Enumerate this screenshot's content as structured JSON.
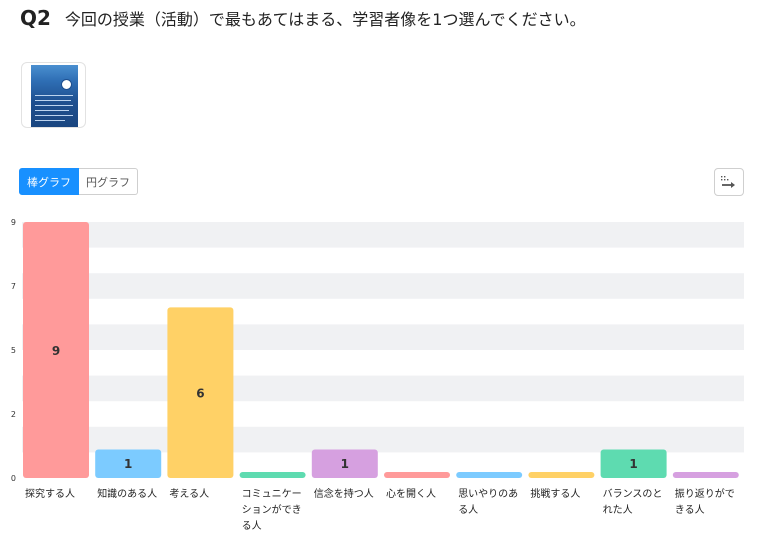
{
  "question": {
    "number": "Q2",
    "text": "今回の授業（活動）で最もあてはまる、学習者像を1つ選んでください。"
  },
  "toggle": {
    "bar_label": "棒グラフ",
    "pie_label": "円グラフ",
    "active": "bar"
  },
  "export_icon": "export-arrow-icon",
  "chart_data": {
    "type": "bar",
    "categories": [
      [
        "探究する人"
      ],
      [
        "知識のある人"
      ],
      [
        "考える人"
      ],
      [
        "コミュニケー",
        "ションができ",
        "る人"
      ],
      [
        "信念を持つ人"
      ],
      [
        "心を開く人"
      ],
      [
        "思いやりのあ",
        "る人"
      ],
      [
        "挑戦する人"
      ],
      [
        "バランスのと",
        "れた人"
      ],
      [
        "振り返りがで",
        "きる人"
      ]
    ],
    "values": [
      9,
      1,
      6,
      0,
      1,
      0,
      0,
      0,
      1,
      0
    ],
    "data_labels": [
      "9",
      "1",
      "6",
      "",
      "1",
      "",
      "",
      "",
      "1",
      ""
    ],
    "colors": [
      "#ff9a9a",
      "#7ccbff",
      "#ffd166",
      "#5edbb0",
      "#d6a0e0",
      "#ff9a9a",
      "#7ccbff",
      "#ffd166",
      "#5edbb0",
      "#d6a0e0"
    ],
    "ylim": [
      0,
      9
    ],
    "ytick_labels": [
      "0",
      "2",
      "5",
      "7",
      "9"
    ],
    "grid": true,
    "band_color": "#f0f1f3"
  }
}
